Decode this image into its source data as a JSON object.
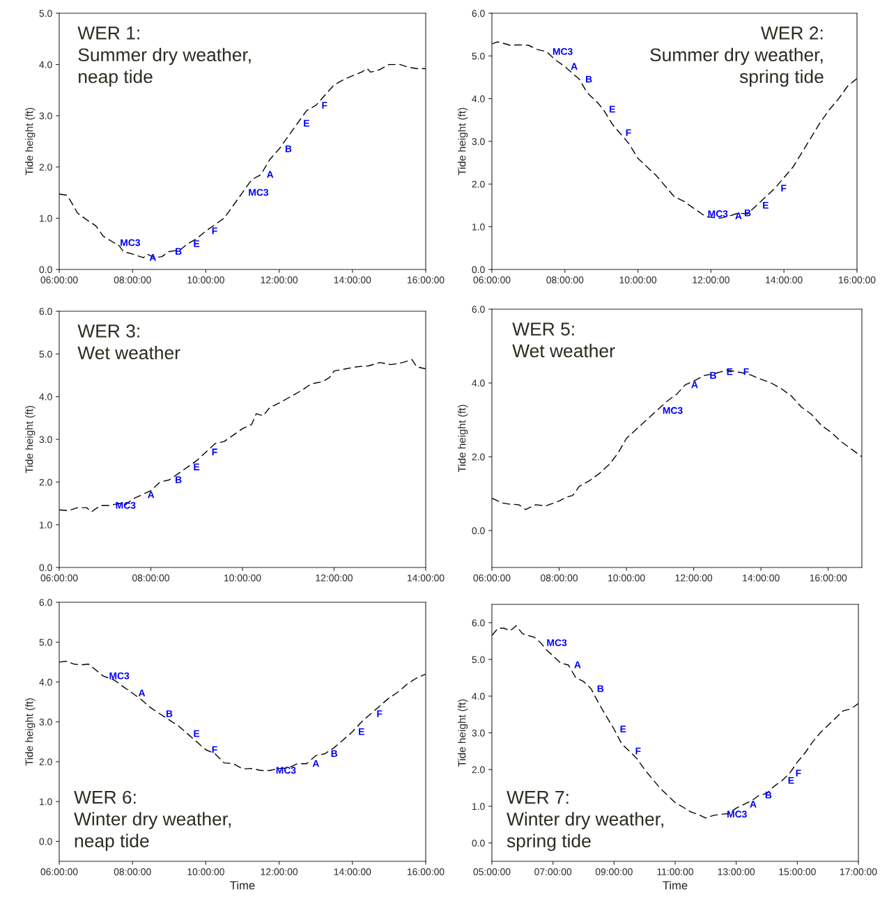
{
  "chart_data": [
    {
      "type": "line",
      "title": "WER 1:\nSummer dry weather,\nneap tide",
      "ylabel": "Tide height (ft)",
      "line_style": "dashed",
      "grid": false,
      "marker": "none",
      "xlim": [
        6,
        16
      ],
      "ylim": [
        0,
        5
      ],
      "yticks": [
        {
          "value": 0,
          "label": "0.0"
        },
        {
          "value": 1,
          "label": "1.0"
        },
        {
          "value": 2,
          "label": "2.0"
        },
        {
          "value": 3,
          "label": "3.0"
        },
        {
          "value": 4,
          "label": "4.0"
        },
        {
          "value": 5,
          "label": "5.0"
        }
      ],
      "xticks": [
        {
          "value": 6,
          "label": "06:00:00"
        },
        {
          "value": 8,
          "label": "08:00:00"
        },
        {
          "value": 10,
          "label": "10:00:00"
        },
        {
          "value": 12,
          "label": "12:00:00"
        },
        {
          "value": 14,
          "label": "14:00:00"
        },
        {
          "value": 16,
          "label": "16:00:00"
        }
      ],
      "series": [
        {
          "color": "#000000",
          "x": [
            6,
            6.2,
            6.3,
            6.5,
            6.75,
            7.0,
            7.2,
            7.5,
            7.6,
            7.75,
            8.0,
            8.3,
            8.4,
            8.6,
            8.8,
            9.0,
            9.3,
            9.5,
            9.75,
            10.0,
            10.3,
            10.5,
            10.75,
            11.0,
            11.25,
            11.5,
            11.75,
            12.0,
            12.25,
            12.5,
            12.75,
            13.0,
            13.25,
            13.5,
            13.75,
            14.0,
            14.25,
            14.4,
            14.5,
            14.75,
            15.0,
            15.3,
            15.5,
            15.75,
            16.0
          ],
          "values": [
            1.47,
            1.45,
            1.35,
            1.1,
            0.97,
            0.85,
            0.65,
            0.52,
            0.5,
            0.35,
            0.3,
            0.23,
            0.3,
            0.23,
            0.25,
            0.35,
            0.38,
            0.5,
            0.6,
            0.75,
            0.9,
            1.0,
            1.25,
            1.5,
            1.75,
            1.85,
            2.15,
            2.35,
            2.6,
            2.85,
            3.1,
            3.2,
            3.4,
            3.6,
            3.7,
            3.78,
            3.85,
            3.92,
            3.85,
            3.9,
            4.0,
            4.0,
            3.95,
            3.92,
            3.92
          ]
        }
      ],
      "annotations": [
        {
          "text": "MC3",
          "x": 7.5,
          "y": 0.52
        },
        {
          "text": "A",
          "x": 8.3,
          "y": 0.23
        },
        {
          "text": "B",
          "x": 9.0,
          "y": 0.35
        },
        {
          "text": "E",
          "x": 9.5,
          "y": 0.5
        },
        {
          "text": "F",
          "x": 10.0,
          "y": 0.75
        },
        {
          "text": "MC3",
          "x": 11.0,
          "y": 1.5
        },
        {
          "text": "A",
          "x": 11.5,
          "y": 1.85
        },
        {
          "text": "B",
          "x": 12.0,
          "y": 2.35
        },
        {
          "text": "E",
          "x": 12.5,
          "y": 2.85
        },
        {
          "text": "F",
          "x": 13.0,
          "y": 3.2
        }
      ]
    },
    {
      "type": "line",
      "title": "WER 2:\nSummer dry weather,\nspring tide",
      "ylabel": "Tide height (ft)",
      "line_style": "dashed",
      "grid": false,
      "marker": "none",
      "xlim": [
        6,
        16
      ],
      "ylim": [
        0,
        6
      ],
      "yticks": [
        {
          "value": 0,
          "label": "0.0"
        },
        {
          "value": 1,
          "label": "1.0"
        },
        {
          "value": 2,
          "label": "2.0"
        },
        {
          "value": 3,
          "label": "3.0"
        },
        {
          "value": 4,
          "label": "4.0"
        },
        {
          "value": 5,
          "label": "5.0"
        },
        {
          "value": 6,
          "label": "6.0"
        }
      ],
      "xticks": [
        {
          "value": 6,
          "label": "06:00:00"
        },
        {
          "value": 8,
          "label": "08:00:00"
        },
        {
          "value": 10,
          "label": "10:00:00"
        },
        {
          "value": 12,
          "label": "12:00:00"
        },
        {
          "value": 14,
          "label": "14:00:00"
        },
        {
          "value": 16,
          "label": "16:00:00"
        }
      ],
      "series": [
        {
          "color": "#000000",
          "x": [
            6,
            6.15,
            6.3,
            6.5,
            6.75,
            7.0,
            7.25,
            7.5,
            7.75,
            8.0,
            8.2,
            8.4,
            8.6,
            8.9,
            9.05,
            9.3,
            9.5,
            9.75,
            10.0,
            10.25,
            10.5,
            10.6,
            10.75,
            11.0,
            11.25,
            11.5,
            11.75,
            11.9,
            12.25,
            12.5,
            12.75,
            13.0,
            13.25,
            13.5,
            13.75,
            14.0,
            14.25,
            14.5,
            14.75,
            15.0,
            15.25,
            15.5,
            15.75,
            16.0
          ],
          "values": [
            5.28,
            5.33,
            5.3,
            5.25,
            5.26,
            5.25,
            5.15,
            5.1,
            4.9,
            4.75,
            4.6,
            4.45,
            4.15,
            3.9,
            3.75,
            3.4,
            3.2,
            2.95,
            2.6,
            2.4,
            2.2,
            2.1,
            1.95,
            1.7,
            1.6,
            1.45,
            1.3,
            1.23,
            1.2,
            1.25,
            1.32,
            1.3,
            1.5,
            1.7,
            1.9,
            2.15,
            2.4,
            2.75,
            3.1,
            3.45,
            3.75,
            4.0,
            4.3,
            4.47
          ]
        }
      ],
      "annotations": [
        {
          "text": "MC3",
          "x": 7.5,
          "y": 5.1
        },
        {
          "text": "A",
          "x": 8.0,
          "y": 4.75
        },
        {
          "text": "B",
          "x": 8.4,
          "y": 4.45
        },
        {
          "text": "E",
          "x": 9.05,
          "y": 3.75
        },
        {
          "text": "F",
          "x": 9.5,
          "y": 3.2
        },
        {
          "text": "MC3",
          "x": 11.75,
          "y": 1.3
        },
        {
          "text": "A",
          "x": 12.5,
          "y": 1.25
        },
        {
          "text": "B",
          "x": 12.75,
          "y": 1.32
        },
        {
          "text": "E",
          "x": 13.25,
          "y": 1.5
        },
        {
          "text": "F",
          "x": 13.75,
          "y": 1.9
        }
      ]
    },
    {
      "type": "line",
      "title": "WER 3:\nWet weather",
      "ylabel": "Tide height (ft)",
      "line_style": "dashed",
      "grid": false,
      "marker": "none",
      "xlim": [
        6,
        14
      ],
      "ylim": [
        0,
        6
      ],
      "yticks": [
        {
          "value": 0,
          "label": "0.0"
        },
        {
          "value": 1,
          "label": "1.0"
        },
        {
          "value": 2,
          "label": "2.0"
        },
        {
          "value": 3,
          "label": "3.0"
        },
        {
          "value": 4,
          "label": "4.0"
        },
        {
          "value": 5,
          "label": "5.0"
        },
        {
          "value": 6,
          "label": "6.0"
        }
      ],
      "xticks": [
        {
          "value": 6,
          "label": "06:00:00"
        },
        {
          "value": 8,
          "label": "08:00:00"
        },
        {
          "value": 10,
          "label": "10:00:00"
        },
        {
          "value": 12,
          "label": "12:00:00"
        },
        {
          "value": 14,
          "label": "14:00:00"
        }
      ],
      "series": [
        {
          "color": "#000000",
          "x": [
            6,
            6.2,
            6.4,
            6.6,
            6.7,
            6.9,
            7.1,
            7.3,
            7.45,
            7.6,
            7.8,
            8.0,
            8.2,
            8.4,
            8.6,
            8.8,
            9.0,
            9.2,
            9.4,
            9.6,
            9.8,
            10.0,
            10.2,
            10.3,
            10.45,
            10.6,
            10.8,
            11.0,
            11.3,
            11.5,
            11.75,
            11.9,
            12.0,
            12.25,
            12.5,
            12.75,
            13.0,
            13.25,
            13.5,
            13.7,
            13.8,
            14.0
          ],
          "values": [
            1.35,
            1.33,
            1.4,
            1.4,
            1.3,
            1.45,
            1.45,
            1.5,
            1.47,
            1.6,
            1.7,
            1.8,
            2.0,
            2.05,
            2.2,
            2.35,
            2.5,
            2.7,
            2.9,
            2.95,
            3.1,
            3.25,
            3.35,
            3.6,
            3.55,
            3.75,
            3.85,
            3.97,
            4.15,
            4.3,
            4.35,
            4.45,
            4.6,
            4.65,
            4.7,
            4.72,
            4.8,
            4.75,
            4.8,
            4.87,
            4.7,
            4.65
          ]
        }
      ],
      "annotations": [
        {
          "text": "MC3",
          "x": 7.1,
          "y": 1.45
        },
        {
          "text": "A",
          "x": 7.8,
          "y": 1.7
        },
        {
          "text": "B",
          "x": 8.4,
          "y": 2.05
        },
        {
          "text": "E",
          "x": 8.8,
          "y": 2.35
        },
        {
          "text": "F",
          "x": 9.2,
          "y": 2.7
        }
      ]
    },
    {
      "type": "line",
      "title": "WER 5:\nWet weather",
      "ylabel": "Tide height (ft)",
      "line_style": "dashed",
      "grid": false,
      "marker": "none",
      "xlim": [
        6,
        17
      ],
      "ylim": [
        -1,
        6
      ],
      "yticks": [
        {
          "value": 0,
          "label": "0.0"
        },
        {
          "value": 2,
          "label": "2.0"
        },
        {
          "value": 4,
          "label": "4.0"
        },
        {
          "value": 6,
          "label": "6.0"
        }
      ],
      "xticks": [
        {
          "value": 6,
          "label": "06:00:00"
        },
        {
          "value": 8,
          "label": "08:00:00"
        },
        {
          "value": 10,
          "label": "10:00:00"
        },
        {
          "value": 12,
          "label": "12:00:00"
        },
        {
          "value": 14,
          "label": "14:00:00"
        },
        {
          "value": 16,
          "label": "16:00:00"
        }
      ],
      "series": [
        {
          "color": "#000000",
          "x": [
            6,
            6.3,
            6.5,
            6.8,
            7.0,
            7.3,
            7.6,
            8.0,
            8.2,
            8.4,
            8.6,
            8.9,
            9.2,
            9.5,
            9.75,
            10.0,
            10.3,
            10.6,
            10.9,
            11.2,
            11.5,
            11.75,
            12.0,
            12.3,
            12.6,
            12.8,
            13.0,
            13.3,
            13.6,
            14.0,
            14.3,
            14.6,
            14.9,
            15.2,
            15.5,
            15.8,
            16.1,
            16.4,
            16.7,
            17.0
          ],
          "values": [
            0.88,
            0.75,
            0.72,
            0.7,
            0.57,
            0.7,
            0.67,
            0.8,
            0.9,
            0.95,
            1.2,
            1.35,
            1.55,
            1.8,
            2.1,
            2.5,
            2.75,
            3.0,
            3.25,
            3.5,
            3.7,
            3.95,
            4.05,
            4.2,
            4.25,
            4.3,
            4.35,
            4.3,
            4.25,
            4.1,
            4.0,
            3.85,
            3.65,
            3.35,
            3.15,
            2.85,
            2.65,
            2.4,
            2.2,
            2.0
          ]
        }
      ],
      "annotations": [
        {
          "text": "MC3",
          "x": 10.9,
          "y": 3.25
        },
        {
          "text": "A",
          "x": 11.75,
          "y": 3.95
        },
        {
          "text": "B",
          "x": 12.3,
          "y": 4.2
        },
        {
          "text": "E",
          "x": 12.8,
          "y": 4.3
        },
        {
          "text": "F",
          "x": 13.3,
          "y": 4.3
        }
      ]
    },
    {
      "type": "line",
      "title": "WER 6:\nWinter dry weather,\nneap tide",
      "xlabel": "Time",
      "ylabel": "Tide height (ft)",
      "line_style": "dashed",
      "grid": false,
      "marker": "none",
      "xlim": [
        6,
        16
      ],
      "ylim": [
        -0.5,
        6
      ],
      "yticks": [
        {
          "value": 0,
          "label": "0.0"
        },
        {
          "value": 1,
          "label": "1.0"
        },
        {
          "value": 2,
          "label": "2.0"
        },
        {
          "value": 3,
          "label": "3.0"
        },
        {
          "value": 4,
          "label": "4.0"
        },
        {
          "value": 5,
          "label": "5.0"
        },
        {
          "value": 6,
          "label": "6.0"
        }
      ],
      "xticks": [
        {
          "value": 6,
          "label": "06:00:00"
        },
        {
          "value": 8,
          "label": "08:00:00"
        },
        {
          "value": 10,
          "label": "10:00:00"
        },
        {
          "value": 12,
          "label": "12:00:00"
        },
        {
          "value": 14,
          "label": "14:00:00"
        },
        {
          "value": 16,
          "label": "16:00:00"
        }
      ],
      "series": [
        {
          "color": "#000000",
          "x": [
            6,
            6.2,
            6.4,
            6.6,
            6.8,
            7.0,
            7.2,
            7.5,
            7.75,
            8.0,
            8.25,
            8.5,
            8.75,
            9.0,
            9.25,
            9.5,
            9.75,
            10.0,
            10.25,
            10.5,
            10.75,
            11.0,
            11.25,
            11.5,
            11.75,
            12.0,
            12.25,
            12.5,
            12.75,
            13.0,
            13.25,
            13.5,
            13.75,
            14.0,
            14.25,
            14.5,
            14.75,
            15.0,
            15.25,
            15.5,
            15.75,
            16.0
          ],
          "values": [
            4.5,
            4.52,
            4.45,
            4.43,
            4.45,
            4.3,
            4.15,
            4.05,
            3.88,
            3.72,
            3.55,
            3.35,
            3.2,
            3.05,
            2.9,
            2.7,
            2.5,
            2.3,
            2.2,
            1.97,
            1.95,
            1.82,
            1.83,
            1.78,
            1.78,
            1.83,
            1.84,
            1.95,
            1.95,
            2.15,
            2.2,
            2.35,
            2.55,
            2.75,
            3.0,
            3.2,
            3.4,
            3.6,
            3.75,
            3.95,
            4.1,
            4.2
          ]
        }
      ],
      "annotations": [
        {
          "text": "MC3",
          "x": 7.2,
          "y": 4.15
        },
        {
          "text": "A",
          "x": 8.0,
          "y": 3.72
        },
        {
          "text": "B",
          "x": 8.75,
          "y": 3.2
        },
        {
          "text": "E",
          "x": 9.5,
          "y": 2.7
        },
        {
          "text": "F",
          "x": 10.0,
          "y": 2.3
        },
        {
          "text": "MC3",
          "x": 11.75,
          "y": 1.78
        },
        {
          "text": "A",
          "x": 12.75,
          "y": 1.95
        },
        {
          "text": "B",
          "x": 13.25,
          "y": 2.2
        },
        {
          "text": "E",
          "x": 14.0,
          "y": 2.75
        },
        {
          "text": "F",
          "x": 14.5,
          "y": 3.2
        }
      ]
    },
    {
      "type": "line",
      "title": "WER 7:\nWinter dry weather,\nspring tide",
      "xlabel": "Time",
      "ylabel": "Tide height (ft)",
      "line_style": "dashed",
      "grid": false,
      "marker": "none",
      "xlim": [
        5,
        17
      ],
      "ylim": [
        -0.5,
        6.5
      ],
      "yticks": [
        {
          "value": 0,
          "label": "0.0"
        },
        {
          "value": 1,
          "label": "1.0"
        },
        {
          "value": 2,
          "label": "2.0"
        },
        {
          "value": 3,
          "label": "3.0"
        },
        {
          "value": 4,
          "label": "4.0"
        },
        {
          "value": 5,
          "label": "5.0"
        },
        {
          "value": 6,
          "label": "6.0"
        }
      ],
      "xticks": [
        {
          "value": 5,
          "label": "05:00:00"
        },
        {
          "value": 7,
          "label": "07:00:00"
        },
        {
          "value": 9,
          "label": "09:00:00"
        },
        {
          "value": 11,
          "label": "11:00:00"
        },
        {
          "value": 13,
          "label": "13:00:00"
        },
        {
          "value": 15,
          "label": "15:00:00"
        },
        {
          "value": 17,
          "label": "17:00:00"
        }
      ],
      "series": [
        {
          "color": "#000000",
          "x": [
            5,
            5.2,
            5.4,
            5.6,
            5.8,
            6.0,
            6.2,
            6.4,
            6.6,
            6.8,
            7.0,
            7.25,
            7.5,
            7.75,
            8.0,
            8.25,
            8.5,
            8.75,
            9.0,
            9.25,
            9.5,
            9.75,
            10.0,
            10.25,
            10.5,
            10.75,
            11.0,
            11.25,
            11.5,
            11.75,
            12.0,
            12.25,
            12.5,
            12.75,
            13.0,
            13.25,
            13.5,
            13.75,
            14.0,
            14.25,
            14.5,
            14.75,
            15.0,
            15.25,
            15.5,
            15.75,
            16.0,
            16.25,
            16.5,
            16.75,
            17.0
          ],
          "values": [
            5.65,
            5.85,
            5.85,
            5.78,
            5.92,
            5.7,
            5.65,
            5.6,
            5.45,
            5.25,
            5.1,
            4.9,
            4.85,
            4.5,
            4.4,
            4.2,
            3.8,
            3.45,
            3.1,
            2.7,
            2.5,
            2.3,
            2.0,
            1.75,
            1.5,
            1.3,
            1.1,
            0.98,
            0.85,
            0.78,
            0.68,
            0.75,
            0.78,
            0.8,
            0.95,
            1.05,
            1.15,
            1.3,
            1.35,
            1.55,
            1.7,
            1.9,
            2.2,
            2.45,
            2.75,
            3.0,
            3.2,
            3.4,
            3.6,
            3.65,
            3.8
          ]
        }
      ],
      "annotations": [
        {
          "text": "MC3",
          "x": 6.6,
          "y": 5.45
        },
        {
          "text": "A",
          "x": 7.5,
          "y": 4.85
        },
        {
          "text": "B",
          "x": 8.25,
          "y": 4.2
        },
        {
          "text": "E",
          "x": 9.0,
          "y": 3.1
        },
        {
          "text": "F",
          "x": 9.5,
          "y": 2.5
        },
        {
          "text": "MC3",
          "x": 12.5,
          "y": 0.78
        },
        {
          "text": "A",
          "x": 13.25,
          "y": 1.05
        },
        {
          "text": "B",
          "x": 13.75,
          "y": 1.3
        },
        {
          "text": "E",
          "x": 14.5,
          "y": 1.7
        },
        {
          "text": "F",
          "x": 14.75,
          "y": 1.9
        }
      ]
    }
  ]
}
